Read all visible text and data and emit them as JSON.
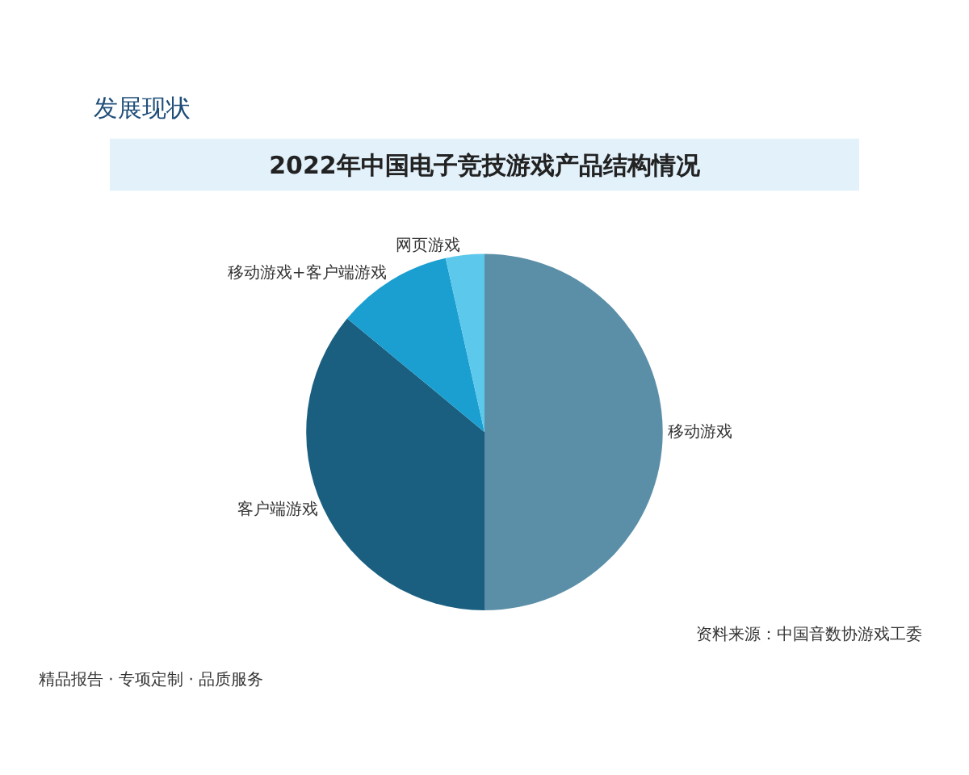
{
  "chart_data": {
    "type": "pie",
    "title": "2022年中国电子竞技游戏产品结构情况",
    "categories": [
      "移动游戏",
      "客户端游戏",
      "移动游戏+客户端游戏",
      "网页游戏"
    ],
    "values": [
      50,
      36,
      10.5,
      3.5
    ],
    "colors": [
      "#5b8fa8",
      "#1a5f80",
      "#1a9fd0",
      "#5bc8ec"
    ],
    "annotations": [
      "发展现状",
      "精品报告 · 专项定制 · 品质服务",
      "资料来源：中国音数协游戏工委"
    ],
    "legend": false
  }
}
